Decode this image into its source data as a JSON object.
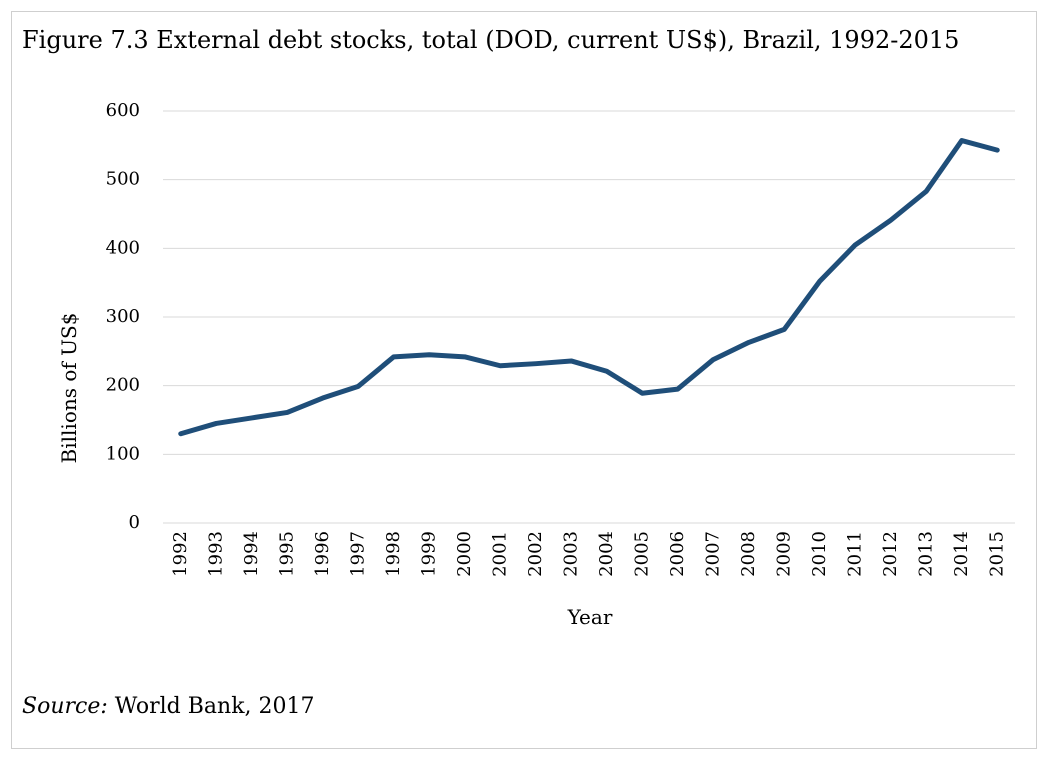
{
  "figure": {
    "title": "Figure 7.3 External debt stocks, total (DOD, current US$), Brazil, 1992-2015",
    "source_label": "Source:",
    "source_text": "World Bank, 2017"
  },
  "chart_data": {
    "type": "line",
    "title": "Figure 7.3 External debt stocks, total (DOD, current US$), Brazil, 1992-2015",
    "xlabel": "Year",
    "ylabel": "Billions of US$",
    "ylim": [
      0,
      600
    ],
    "yticks": [
      0,
      100,
      200,
      300,
      400,
      500,
      600
    ],
    "grid": true,
    "legend": "none",
    "categories": [
      "1992",
      "1993",
      "1994",
      "1995",
      "1996",
      "1997",
      "1998",
      "1999",
      "2000",
      "2001",
      "2002",
      "2003",
      "2004",
      "2005",
      "2006",
      "2007",
      "2008",
      "2009",
      "2010",
      "2011",
      "2012",
      "2013",
      "2014",
      "2015"
    ],
    "series": [
      {
        "color": "#1f4e79",
        "values": [
          130,
          145,
          153,
          161,
          182,
          199,
          242,
          245,
          242,
          229,
          232,
          236,
          221,
          189,
          195,
          238,
          263,
          282,
          352,
          405,
          441,
          483,
          557,
          543
        ]
      }
    ]
  }
}
